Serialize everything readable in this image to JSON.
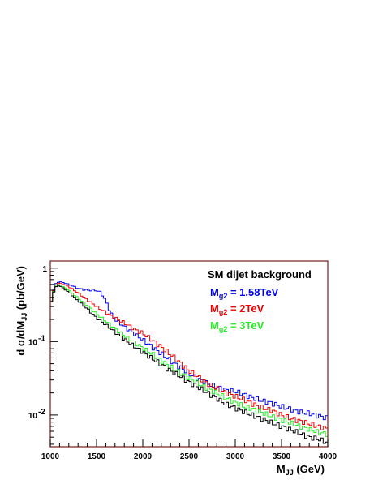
{
  "chart_data": {
    "type": "line",
    "step": true,
    "log_y": true,
    "grid": false,
    "xlim": [
      1000,
      4000
    ],
    "ylim": [
      0.0037,
      1.25
    ],
    "x_ticks": [
      1000,
      1500,
      2000,
      2500,
      3000,
      3500,
      4000
    ],
    "x_tick_labels": [
      "1000",
      "1500",
      "2000",
      "2500",
      "3000",
      "3500",
      "4000"
    ],
    "y_tick_labels": [
      {
        "value": 1,
        "label": "1"
      },
      {
        "value": 0.1,
        "label": "10",
        "exp": "-1"
      },
      {
        "value": 0.01,
        "label": "10",
        "exp": "-2"
      }
    ],
    "xlabel": {
      "main": "M",
      "sub": "JJ",
      "rest": " (GeV)"
    },
    "ylabel": {
      "pre": "d σ/dM",
      "sub": "JJ",
      "rest": " (pb/GeV)"
    },
    "legend": {
      "title": "SM dijet background",
      "placement": "top-right",
      "entries": [
        {
          "series": 0,
          "main": "M",
          "sub": "g2",
          "rest": " = 1.58TeV"
        },
        {
          "series": 1,
          "main": "M",
          "sub": "g2",
          "rest": " = 2TeV"
        },
        {
          "series": 2,
          "main": "M",
          "sub": "g2",
          "rest": " = 3TeV"
        }
      ]
    },
    "series": [
      {
        "color": "#0000ee",
        "x": [
          1000,
          1050,
          1100,
          1200,
          1300,
          1400,
          1500,
          1550,
          1600,
          1650,
          1700,
          1800,
          1900,
          2000,
          2100,
          2200,
          2300,
          2400,
          2500,
          2600,
          2700,
          2800,
          2900,
          3000,
          3100,
          3200,
          3300,
          3400,
          3500,
          3600,
          3700,
          3800,
          3900,
          4000
        ],
        "y": [
          0.3,
          0.6,
          0.66,
          0.6,
          0.53,
          0.5,
          0.5,
          0.46,
          0.36,
          0.25,
          0.2,
          0.16,
          0.13,
          0.106,
          0.085,
          0.069,
          0.055,
          0.045,
          0.037,
          0.031,
          0.027,
          0.024,
          0.022,
          0.021,
          0.019,
          0.017,
          0.0155,
          0.0145,
          0.013,
          0.012,
          0.011,
          0.0105,
          0.0098,
          0.009
        ]
      },
      {
        "color": "#ee0000",
        "x": [
          1000,
          1050,
          1100,
          1200,
          1300,
          1400,
          1500,
          1600,
          1700,
          1800,
          1900,
          2000,
          2100,
          2200,
          2300,
          2400,
          2500,
          2600,
          2700,
          2800,
          2900,
          3000,
          3100,
          3200,
          3300,
          3400,
          3500,
          3600,
          3700,
          3800,
          3900,
          4000
        ],
        "y": [
          0.3,
          0.58,
          0.63,
          0.56,
          0.46,
          0.37,
          0.3,
          0.25,
          0.21,
          0.18,
          0.15,
          0.13,
          0.105,
          0.085,
          0.067,
          0.052,
          0.04,
          0.033,
          0.027,
          0.023,
          0.02,
          0.018,
          0.016,
          0.014,
          0.0125,
          0.0115,
          0.01,
          0.009,
          0.0083,
          0.0076,
          0.007,
          0.0065
        ]
      },
      {
        "color": "#22ee22",
        "x": [
          1000,
          1050,
          1100,
          1200,
          1300,
          1400,
          1500,
          1600,
          1700,
          1800,
          1900,
          2000,
          2100,
          2200,
          2300,
          2400,
          2500,
          2600,
          2700,
          2800,
          2900,
          3000,
          3100,
          3200,
          3300,
          3400,
          3500,
          3600,
          3700,
          3800,
          3900,
          4000
        ],
        "y": [
          0.3,
          0.56,
          0.6,
          0.5,
          0.39,
          0.31,
          0.24,
          0.19,
          0.15,
          0.12,
          0.1,
          0.082,
          0.068,
          0.055,
          0.045,
          0.038,
          0.032,
          0.027,
          0.023,
          0.02,
          0.017,
          0.015,
          0.013,
          0.012,
          0.0107,
          0.0095,
          0.0086,
          0.0078,
          0.007,
          0.0064,
          0.0058,
          0.0055
        ]
      },
      {
        "color": "#000000",
        "x": [
          1000,
          1050,
          1100,
          1200,
          1300,
          1400,
          1500,
          1600,
          1700,
          1800,
          1900,
          2000,
          2100,
          2200,
          2300,
          2400,
          2500,
          2600,
          2700,
          2800,
          2900,
          3000,
          3100,
          3200,
          3300,
          3400,
          3500,
          3600,
          3700,
          3800,
          3900,
          4000
        ],
        "y": [
          0.3,
          0.55,
          0.58,
          0.47,
          0.36,
          0.28,
          0.21,
          0.17,
          0.135,
          0.107,
          0.088,
          0.072,
          0.059,
          0.049,
          0.04,
          0.034,
          0.028,
          0.024,
          0.02,
          0.017,
          0.014,
          0.0125,
          0.011,
          0.0098,
          0.0088,
          0.0078,
          0.007,
          0.0063,
          0.0056,
          0.005,
          0.0047,
          0.0042
        ]
      }
    ]
  },
  "colors": {
    "frame": "#7a1a1a",
    "axis": "#000000"
  }
}
